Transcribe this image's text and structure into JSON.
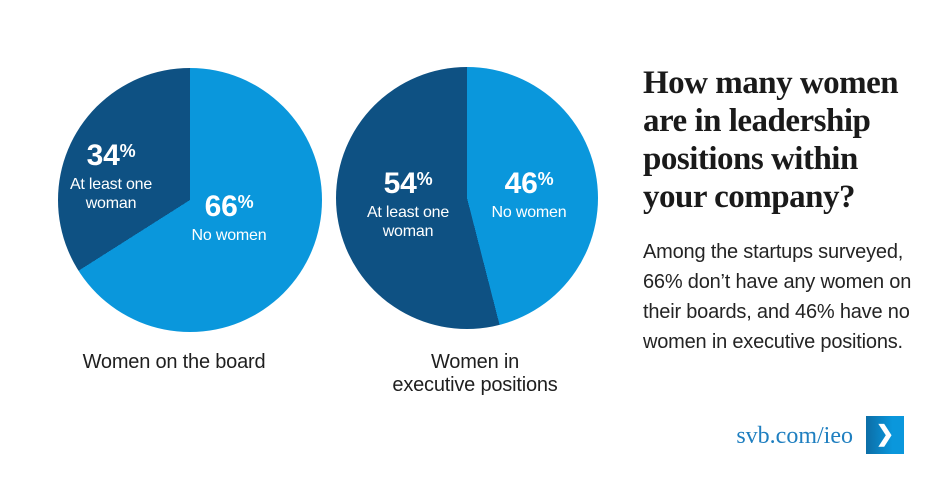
{
  "colors": {
    "dark_blue": "#0e5183",
    "light_blue": "#0a97dc",
    "heading_text": "#1a1a1a",
    "body_text": "#242424",
    "caption_text": "#1f1f1f",
    "link_blue": "#1f7fc0",
    "label_text_on_pie": "#ffffff",
    "background": "#ffffff"
  },
  "chart_data": [
    {
      "type": "pie",
      "title": "Women on the board",
      "title_lines": [
        "Women on the board"
      ],
      "legend_position": "labels inside slices",
      "layout_hint": "first slice ends at 12 o'clock and sweeps counterclockwise (drawn on upper-left)",
      "slices": [
        {
          "label": "At least one woman",
          "label_lines": [
            "At least one",
            "woman"
          ],
          "value": 34,
          "value_digits": "34",
          "percent_sign": "%",
          "color": "#0e5183"
        },
        {
          "label": "No women",
          "label_lines": [
            "No women"
          ],
          "value": 66,
          "value_digits": "66",
          "percent_sign": "%",
          "color": "#0a97dc"
        }
      ]
    },
    {
      "type": "pie",
      "title": "Women in executive positions",
      "title_lines": [
        "Women in",
        "executive positions"
      ],
      "legend_position": "labels inside slices",
      "layout_hint": "first slice ends at 12 o'clock and sweeps counterclockwise (drawn on left)",
      "slices": [
        {
          "label": "At least one woman",
          "label_lines": [
            "At least one",
            "woman"
          ],
          "value": 54,
          "value_digits": "54",
          "percent_sign": "%",
          "color": "#0e5183"
        },
        {
          "label": "No women",
          "label_lines": [
            "No women"
          ],
          "value": 46,
          "value_digits": "46",
          "percent_sign": "%",
          "color": "#0a97dc"
        }
      ]
    }
  ],
  "panel": {
    "heading": "How many women are in leadership positions within your company?",
    "heading_lines": [
      "How many women",
      "are in leadership",
      "positions within",
      "your company?"
    ],
    "body": "Among the startups surveyed, 66% don’t have any women on their boards, and 46% have no women in executive positions.",
    "body_lines": [
      "Among the startups surveyed,",
      "66% don’t have any women on",
      "their boards, and 46% have no",
      "women in executive positions."
    ],
    "link": {
      "label": "svb.com/ieo",
      "arrow_glyph": "❯"
    }
  }
}
